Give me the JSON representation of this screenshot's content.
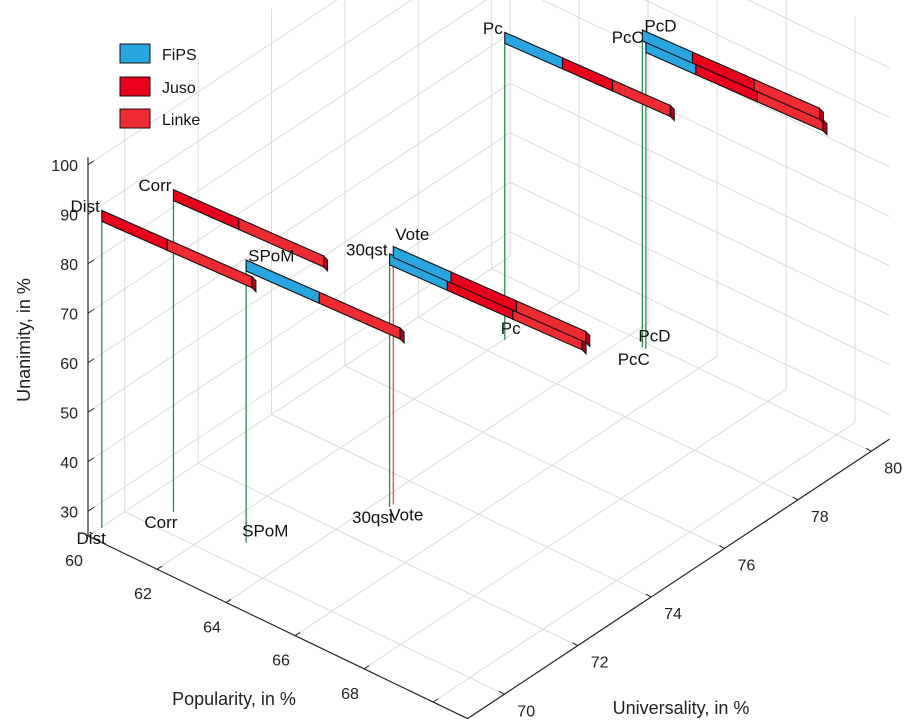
{
  "chart_data": {
    "type": "bar3d",
    "xlabel": "Popularity, in %",
    "ylabel": "Universality, in %",
    "zlabel": "Unanimity, in %",
    "xticks": [
      60,
      62,
      64,
      66,
      68,
      70
    ],
    "yticks": [
      70,
      72,
      74,
      76,
      78,
      80
    ],
    "zticks": [
      30,
      40,
      50,
      60,
      70,
      80,
      90,
      100
    ],
    "xlim": [
      60,
      71
    ],
    "ylim": [
      69,
      80.5
    ],
    "zlim": [
      25,
      100
    ],
    "grid": true,
    "legend_position": "top-left",
    "legend": [
      {
        "name": "FiPS",
        "color": "#29a5df"
      },
      {
        "name": "Juso",
        "color": "#e8001c"
      },
      {
        "name": "Linke",
        "color": "#ee2a32"
      }
    ],
    "points": [
      {
        "label": "Dist",
        "popularity": 60.4,
        "universality": 69.0,
        "unanimity": 91,
        "stem_color": "#2e8b4f",
        "segments": [
          {
            "party": "Juso",
            "length": 1.7
          },
          {
            "party": "Linke",
            "length": 2.2
          }
        ]
      },
      {
        "label": "Corr",
        "popularity": 61.2,
        "universality": 70.2,
        "unanimity": 92,
        "stem_color": "#2e8b4f",
        "segments": [
          {
            "party": "Juso",
            "length": 1.7
          },
          {
            "party": "Linke",
            "length": 2.2
          }
        ]
      },
      {
        "label": "SPoM",
        "popularity": 63.2,
        "universality": 70.3,
        "unanimity": 84,
        "stem_color": "#2e8b4f",
        "segments": [
          {
            "party": "FiPS",
            "length": 1.9
          },
          {
            "party": "Linke",
            "length": 2.1
          }
        ]
      },
      {
        "label": "30qst",
        "popularity": 64.7,
        "universality": 72.8,
        "unanimity": 78,
        "stem_color": "#2e8b4f",
        "segments": [
          {
            "party": "FiPS",
            "length": 1.5
          },
          {
            "party": "Juso",
            "length": 1.7
          },
          {
            "party": "Linke",
            "length": 1.8
          }
        ]
      },
      {
        "label": "Vote",
        "popularity": 64.7,
        "universality": 72.9,
        "unanimity": 79,
        "stem_color": "#d9534f",
        "segments": [
          {
            "party": "FiPS",
            "length": 1.5
          },
          {
            "party": "Juso",
            "length": 1.7
          },
          {
            "party": "Linke",
            "length": 1.8
          }
        ]
      },
      {
        "label": "Pc",
        "popularity": 62.4,
        "universality": 78.1,
        "unanimity": 89,
        "stem_color": "#2e8b4f",
        "segments": [
          {
            "party": "FiPS",
            "length": 1.5
          },
          {
            "party": "Juso",
            "length": 1.3
          },
          {
            "party": "Linke",
            "length": 1.5
          }
        ]
      },
      {
        "label": "PcC",
        "popularity": 65.0,
        "universality": 79.5,
        "unanimity": 89,
        "stem_color": "#2e8b4f",
        "segments": [
          {
            "party": "FiPS",
            "length": 1.3
          },
          {
            "party": "Juso",
            "length": 1.6
          },
          {
            "party": "Linke",
            "length": 1.7
          }
        ]
      },
      {
        "label": "PcD",
        "popularity": 64.9,
        "universality": 79.5,
        "unanimity": 91,
        "stem_color": "#2e8b4f",
        "segments": [
          {
            "party": "FiPS",
            "length": 1.3
          },
          {
            "party": "Juso",
            "length": 1.6
          },
          {
            "party": "Linke",
            "length": 1.7
          }
        ]
      }
    ]
  }
}
